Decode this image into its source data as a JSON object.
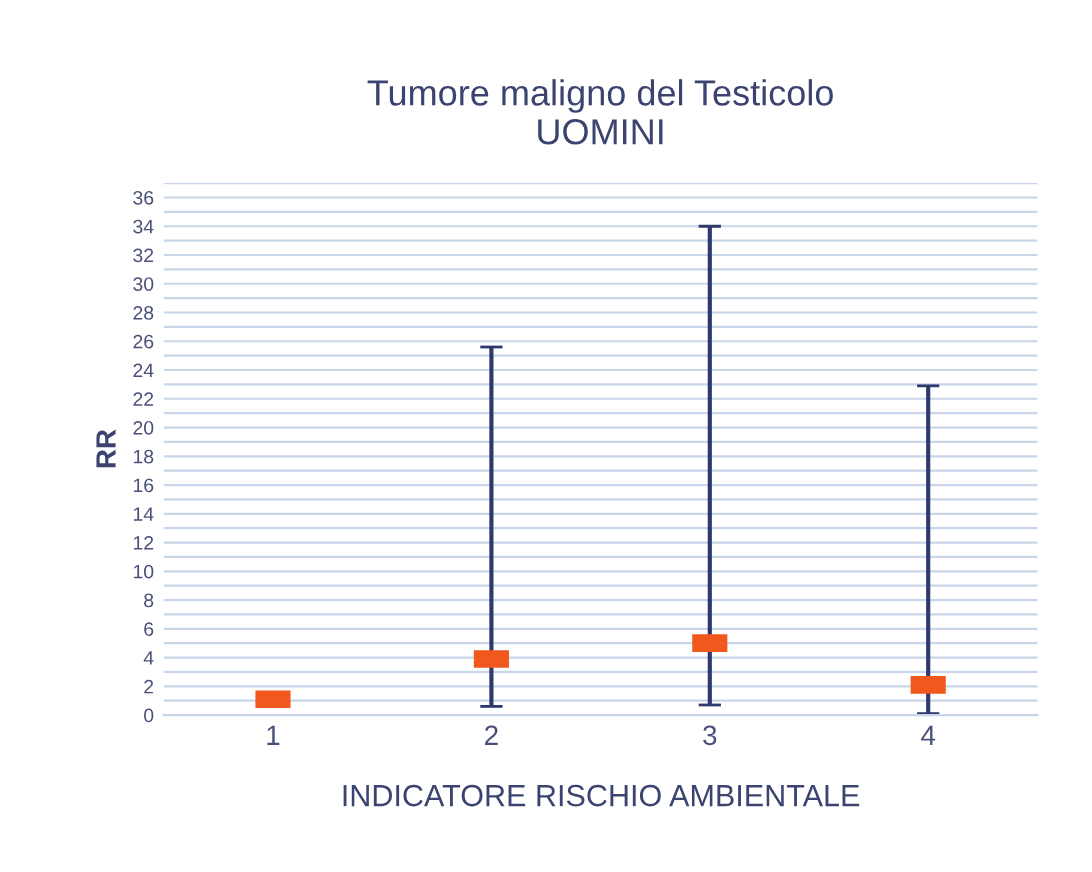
{
  "chart_data": {
    "type": "scatter",
    "title": "Tumore maligno del Testicolo\nUOMINI",
    "xlabel": "INDICATORE RISCHIO AMBIENTALE",
    "ylabel": "RR",
    "categories": [
      "1",
      "2",
      "3",
      "4"
    ],
    "series": [
      {
        "color": "#f0581e",
        "values": [
          1.1,
          3.9,
          5.0,
          2.1
        ],
        "errors": [
          null,
          [
            0.6,
            25.6
          ],
          [
            0.7,
            34
          ],
          [
            0.1,
            22.9
          ]
        ]
      }
    ],
    "ylim": [
      0,
      37
    ],
    "yticks": [
      0,
      {
        "value": 1,
        "label": null
      },
      2,
      {
        "value": 3,
        "label": null
      },
      4,
      {
        "value": 5,
        "label": null
      },
      6,
      {
        "value": 7,
        "label": null
      },
      8,
      {
        "value": 9,
        "label": null
      },
      10,
      {
        "value": 11,
        "label": null
      },
      12,
      {
        "value": 13,
        "label": null
      },
      14,
      {
        "value": 15,
        "label": null
      },
      16,
      {
        "value": 17,
        "label": null
      },
      18,
      {
        "value": 19,
        "label": null
      },
      20,
      {
        "value": 21,
        "label": null
      },
      22,
      {
        "value": 23,
        "label": null
      },
      24,
      {
        "value": 25,
        "label": null
      },
      26,
      {
        "value": 27,
        "label": null
      },
      28,
      {
        "value": 29,
        "label": null
      },
      30,
      {
        "value": 31,
        "label": null
      },
      32,
      {
        "value": 33,
        "label": null
      },
      34,
      {
        "value": 35,
        "label": null
      },
      36,
      {
        "value": 37,
        "label": null
      }
    ],
    "grid": "y"
  }
}
